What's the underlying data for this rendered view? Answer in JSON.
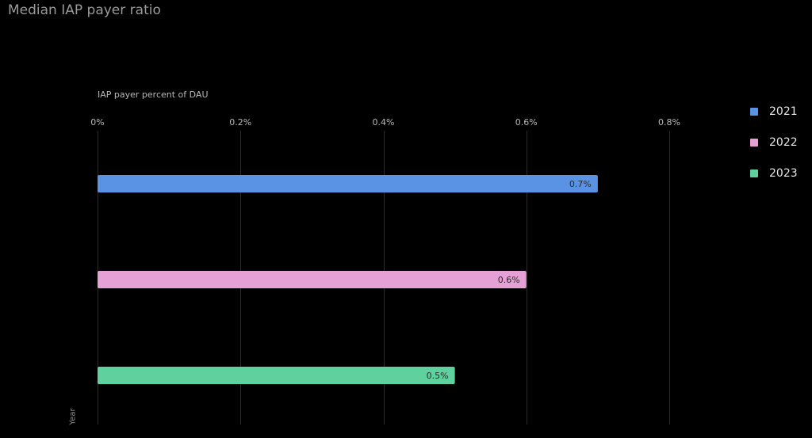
{
  "chart_data": {
    "type": "bar",
    "orientation": "horizontal",
    "title": "Median IAP payer ratio",
    "xlabel": "IAP payer percent of DAU",
    "ylabel": "Year",
    "xlim": [
      0,
      0.8
    ],
    "x_ticks": [
      "0%",
      "0.2%",
      "0.4%",
      "0.6%",
      "0.8%"
    ],
    "x_tick_values": [
      0,
      0.2,
      0.4,
      0.6,
      0.8
    ],
    "grid": true,
    "legend_position": "top-right",
    "series": [
      {
        "name": "2021",
        "value": 0.7,
        "label": "0.7%",
        "color": "#5b93e4"
      },
      {
        "name": "2022",
        "value": 0.6,
        "label": "0.6%",
        "color": "#e5a0d6"
      },
      {
        "name": "2023",
        "value": 0.5,
        "label": "0.5%",
        "color": "#5ed19e"
      }
    ]
  },
  "legend": {
    "items": [
      {
        "label": "2021",
        "color": "#5b93e4"
      },
      {
        "label": "2022",
        "color": "#e5a0d6"
      },
      {
        "label": "2023",
        "color": "#5ed19e"
      }
    ]
  }
}
